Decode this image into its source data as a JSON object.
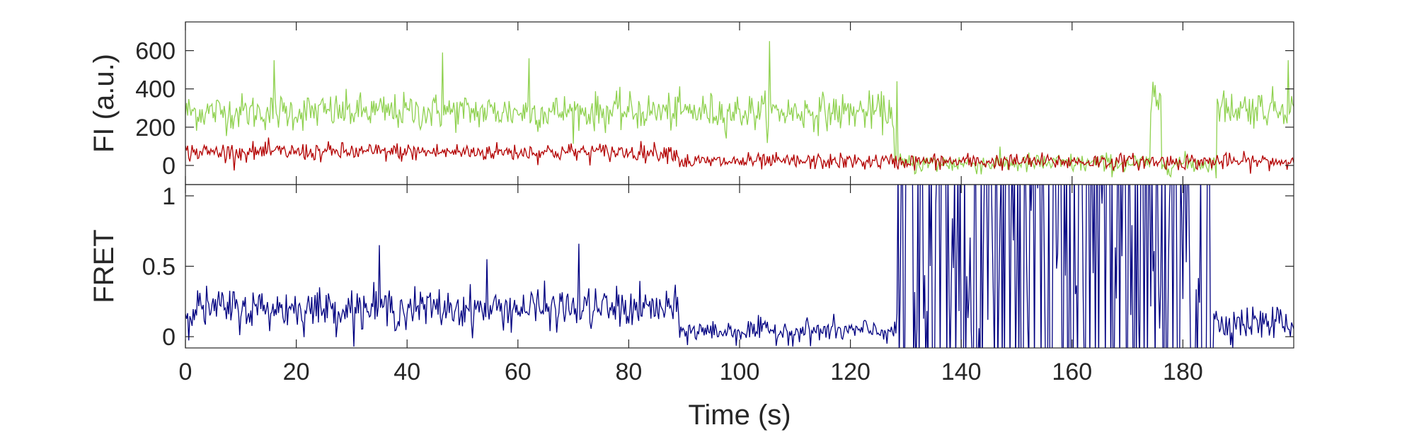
{
  "chart_data": [
    {
      "type": "line",
      "ylabel": "FI (a.u.)",
      "xlim": [
        0,
        200
      ],
      "ylim": [
        -100,
        750
      ],
      "yticks": [
        0,
        200,
        400,
        600
      ],
      "grid": false,
      "legend": "none",
      "series": [
        {
          "color": "#8fd14f",
          "segments": [
            {
              "t": [
                0,
                128
              ],
              "mean": 280,
              "noise": 80
            },
            {
              "t": [
                128,
                174
              ],
              "mean": 10,
              "noise": 45
            },
            {
              "t": [
                174,
                176
              ],
              "mean": 320,
              "noise": 80
            },
            {
              "t": [
                176,
                186
              ],
              "mean": 10,
              "noise": 45
            },
            {
              "t": [
                186,
                200
              ],
              "mean": 300,
              "noise": 80
            }
          ]
        },
        {
          "color": "#b30000",
          "segments": [
            {
              "t": [
                0,
                89
              ],
              "mean": 70,
              "noise": 40
            },
            {
              "t": [
                89,
                200
              ],
              "mean": 20,
              "noise": 35
            }
          ]
        }
      ],
      "peaks": [
        {
          "x": 105.5,
          "y": 650
        },
        {
          "x": 46.5,
          "y": 590
        },
        {
          "x": 16,
          "y": 550
        },
        {
          "x": 62,
          "y": 560
        },
        {
          "x": 175,
          "y": 420
        },
        {
          "x": 128.5,
          "y": 440
        },
        {
          "x": 199,
          "y": 550
        }
      ]
    },
    {
      "type": "line",
      "xlabel": "Time (s)",
      "ylabel": "FRET",
      "xlim": [
        0,
        200
      ],
      "ylim": [
        -0.08,
        1.08
      ],
      "xticks": [
        0,
        20,
        40,
        60,
        80,
        100,
        120,
        140,
        160,
        180
      ],
      "yticks": [
        0,
        0.5,
        1
      ],
      "ytick_labels": [
        "0",
        "0.5",
        "1"
      ],
      "grid": false,
      "legend": "none",
      "series": [
        {
          "color": "#000080",
          "segments": [
            {
              "t": [
                0,
                89
              ],
              "mean": 0.2,
              "noise": 0.12
            },
            {
              "t": [
                89,
                128.5
              ],
              "mean": 0.04,
              "noise": 0.07
            },
            {
              "t": [
                128.5,
                185.5
              ],
              "mean": 0.5,
              "noise": 0.55,
              "switching": true
            },
            {
              "t": [
                185.5,
                200
              ],
              "mean": 0.1,
              "noise": 0.1
            }
          ]
        }
      ],
      "peaks": [
        {
          "x": 35,
          "y": 0.65
        },
        {
          "x": 71,
          "y": 0.66
        },
        {
          "x": 54.5,
          "y": 0.55
        }
      ]
    }
  ]
}
